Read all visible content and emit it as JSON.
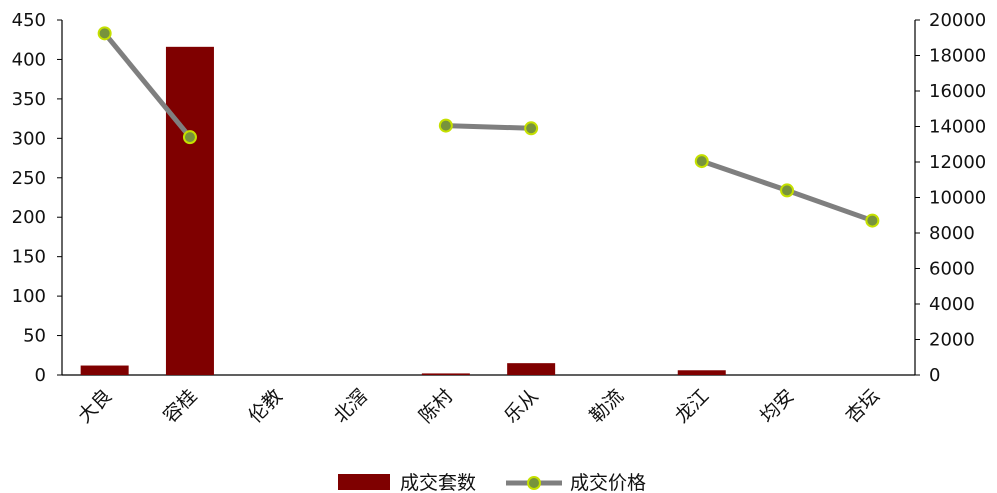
{
  "chart_data": {
    "type": "bar+line",
    "categories": [
      "大良",
      "容桂",
      "伦教",
      "北滘",
      "陈村",
      "乐从",
      "勒流",
      "龙江",
      "均安",
      "杏坛"
    ],
    "series": [
      {
        "name": "成交套数",
        "type": "bar",
        "axis": "left",
        "color": "#7f0000",
        "values": [
          12,
          416,
          0,
          0,
          2,
          15,
          0,
          6,
          0,
          0
        ]
      },
      {
        "name": "成交价格",
        "type": "line",
        "axis": "right",
        "color": "#7f7f7f",
        "marker_fill": "#77933c",
        "marker_stroke": "#c5e000",
        "values": [
          19250,
          13400,
          null,
          null,
          14050,
          13900,
          null,
          12050,
          10400,
          8700
        ]
      }
    ],
    "y_left": {
      "min": 0,
      "max": 450,
      "ticks": [
        "0",
        "50",
        "100",
        "150",
        "200",
        "250",
        "300",
        "350",
        "400",
        "450"
      ]
    },
    "y_right": {
      "min": 0,
      "max": 20000,
      "ticks": [
        "0",
        "2000",
        "4000",
        "6000",
        "8000",
        "10000",
        "12000",
        "14000",
        "16000",
        "18000",
        "20000"
      ]
    },
    "grid": false,
    "legend_position": "bottom",
    "title": "",
    "xlabel": "",
    "ylabel": ""
  }
}
